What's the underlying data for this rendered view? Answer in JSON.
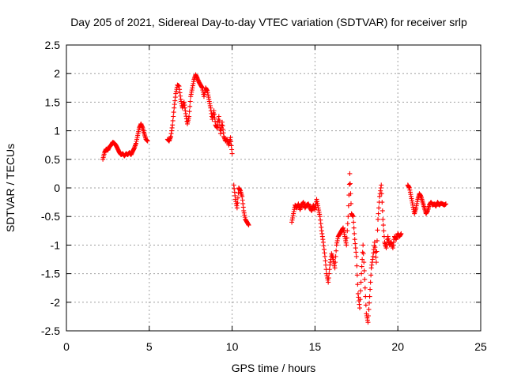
{
  "chart_data": {
    "type": "scatter",
    "title": "Day 205 of 2021, Sidereal Day-to-day VTEC variation (SDTVAR) for receiver srlp",
    "xlabel": "GPS time / hours",
    "ylabel": "SDTVAR / TECUs",
    "xlim": [
      0,
      25
    ],
    "ylim": [
      -2.5,
      2.5
    ],
    "x_ticks": [
      0,
      5,
      10,
      15,
      20,
      25
    ],
    "y_ticks": [
      -2.5,
      -2,
      -1.5,
      -1,
      -0.5,
      0,
      0.5,
      1,
      1.5,
      2,
      2.5
    ],
    "x_tick_labels": [
      "0",
      "5",
      "10",
      "15",
      "20",
      "25"
    ],
    "y_tick_labels": [
      "-2.5",
      "-2",
      "-1.5",
      "-1",
      "-0.5",
      "0",
      "0.5",
      "1",
      "1.5",
      "2",
      "2.5"
    ],
    "grid": true,
    "marker": "plus",
    "color": "#ff0000",
    "series": [
      {
        "x": [
          2.2,
          2.3,
          2.4,
          2.5,
          2.6,
          2.7,
          2.8,
          2.9,
          3.0,
          3.1,
          3.2,
          3.3,
          3.4,
          3.5,
          3.6,
          3.7,
          3.8,
          3.9,
          4.0,
          4.1,
          4.2,
          4.3,
          4.4,
          4.5,
          4.6,
          4.7,
          4.8,
          4.9
        ],
        "y": [
          0.5,
          0.62,
          0.68,
          0.66,
          0.72,
          0.75,
          0.8,
          0.78,
          0.74,
          0.68,
          0.62,
          0.58,
          0.6,
          0.56,
          0.6,
          0.58,
          0.62,
          0.58,
          0.64,
          0.7,
          0.78,
          0.92,
          1.05,
          1.12,
          1.05,
          0.95,
          0.85,
          0.82
        ]
      },
      {
        "x": [
          6.1,
          6.2,
          6.3,
          6.4,
          6.5,
          6.6,
          6.7,
          6.8,
          6.9,
          7.0,
          7.1,
          7.2,
          7.3,
          7.4,
          7.5,
          7.6,
          7.7,
          7.8,
          7.9,
          8.0,
          8.1,
          8.2,
          8.3,
          8.4,
          8.5,
          8.6,
          8.7,
          8.8,
          8.9,
          9.0,
          9.1,
          9.2,
          9.3,
          9.4,
          9.5,
          9.6,
          9.7,
          9.8,
          9.9,
          10.0
        ],
        "y": [
          0.85,
          0.82,
          0.9,
          1.1,
          1.4,
          1.65,
          1.8,
          1.78,
          1.55,
          1.4,
          1.5,
          1.3,
          1.12,
          1.25,
          1.6,
          1.75,
          1.9,
          1.98,
          1.92,
          1.85,
          1.8,
          1.75,
          1.6,
          1.75,
          1.7,
          1.55,
          1.4,
          1.2,
          1.35,
          1.1,
          1.05,
          1.25,
          0.95,
          1.15,
          0.9,
          0.82,
          0.85,
          0.75,
          0.88,
          0.6
        ]
      },
      {
        "x": [
          10.1,
          10.2,
          10.3,
          10.4,
          10.5,
          10.6,
          10.7,
          10.8,
          10.9,
          11.0
        ],
        "y": [
          0.05,
          -0.2,
          -0.35,
          0.0,
          -0.05,
          -0.15,
          -0.4,
          -0.55,
          -0.6,
          -0.65
        ]
      },
      {
        "x": [
          13.6,
          13.7,
          13.8,
          13.9,
          14.0,
          14.1,
          14.2,
          14.3,
          14.4,
          14.5,
          14.6,
          14.7,
          14.8,
          14.9,
          15.0,
          15.1,
          15.2,
          15.3,
          15.4,
          15.5,
          15.6,
          15.7,
          15.8,
          15.9,
          16.0,
          16.1,
          16.2,
          16.3,
          16.4,
          16.5,
          16.6,
          16.7,
          16.8,
          16.9,
          17.0,
          17.1,
          17.2,
          17.3,
          17.4,
          17.5,
          17.6,
          17.7,
          17.8,
          17.9,
          18.0,
          18.1,
          18.2,
          18.3,
          18.4,
          18.5,
          18.6,
          18.7,
          18.8,
          18.9,
          19.0,
          19.1,
          19.2,
          19.3,
          19.4,
          19.5,
          19.6,
          19.7,
          19.8,
          19.9,
          20.0,
          20.1,
          20.2
        ],
        "y": [
          -0.6,
          -0.45,
          -0.3,
          -0.35,
          -0.28,
          -0.38,
          -0.3,
          -0.25,
          -0.35,
          -0.3,
          -0.28,
          -0.35,
          -0.4,
          -0.3,
          -0.38,
          -0.2,
          -0.35,
          -0.5,
          -0.75,
          -0.95,
          -1.2,
          -1.5,
          -1.65,
          -1.35,
          -1.15,
          -1.25,
          -1.4,
          -1.0,
          -0.85,
          -0.8,
          -0.75,
          -0.7,
          -0.85,
          -1.0,
          -0.5,
          0.25,
          -0.45,
          -0.5,
          -0.9,
          -1.2,
          -1.85,
          -2.1,
          -1.5,
          -1.0,
          -1.6,
          -2.2,
          -2.35,
          -1.9,
          -1.4,
          -1.2,
          -0.95,
          -1.3,
          -0.55,
          -0.15,
          0.05,
          -0.55,
          -0.95,
          -1.05,
          -0.85,
          -1.0,
          -0.95,
          -1.05,
          -0.85,
          -0.9,
          -0.8,
          -0.85,
          -0.8
        ]
      },
      {
        "x": [
          20.6,
          20.7,
          20.8,
          20.9,
          21.0,
          21.1,
          21.2,
          21.3,
          21.4,
          21.5,
          21.6,
          21.7,
          21.8,
          21.9,
          22.0,
          22.1,
          22.2,
          22.3,
          22.4,
          22.5,
          22.6,
          22.7,
          22.8,
          22.9
        ],
        "y": [
          0.05,
          0.0,
          -0.15,
          -0.3,
          -0.45,
          -0.35,
          -0.2,
          -0.1,
          -0.15,
          -0.25,
          -0.35,
          -0.45,
          -0.4,
          -0.3,
          -0.25,
          -0.3,
          -0.28,
          -0.32,
          -0.25,
          -0.3,
          -0.27,
          -0.28,
          -0.3,
          -0.28
        ]
      }
    ]
  }
}
